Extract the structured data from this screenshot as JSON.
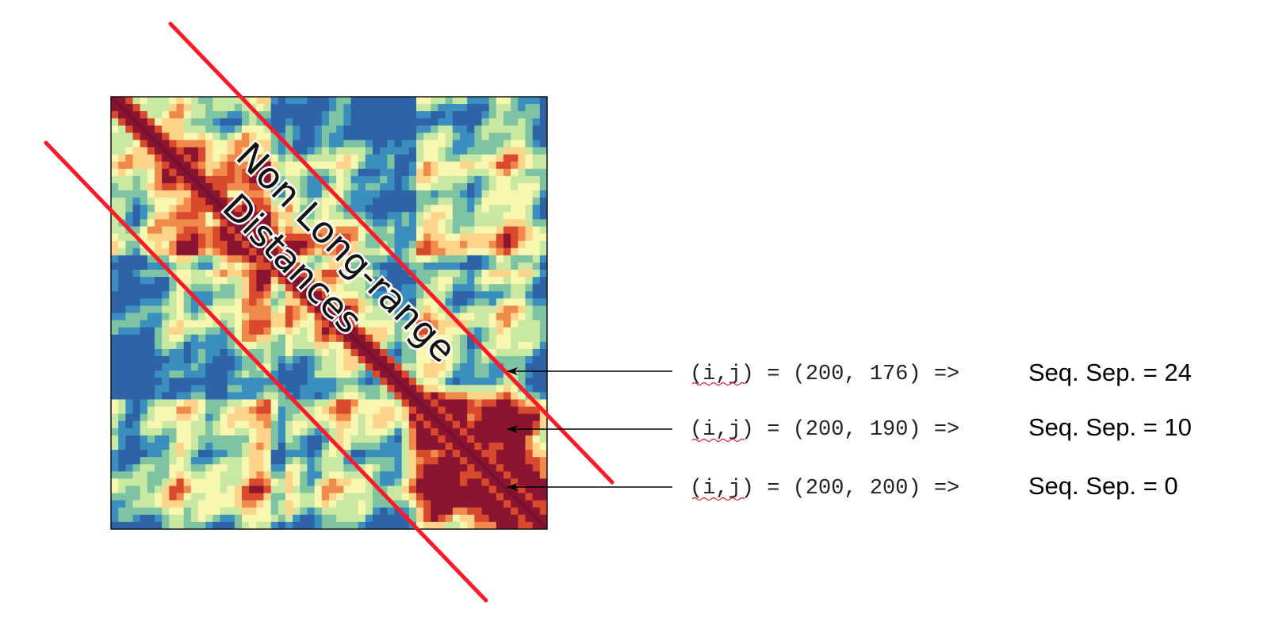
{
  "heatmap": {
    "colormap": [
      "#8b1530",
      "#d94a2c",
      "#f08a4b",
      "#fdd48a",
      "#f7f7b0",
      "#c9e8a2",
      "#7fc4a2",
      "#3a8fbf",
      "#2f63a8"
    ],
    "sequence_length": 200
  },
  "overlay": {
    "line_color": "#ff1a2a",
    "label_line1": "Non Long-range",
    "label_line2": "Distances"
  },
  "annotations": [
    {
      "code": "(i,j) = (200, 176) =>",
      "text": "Seq. Sep. = 24",
      "i": 200,
      "j": 176,
      "separation": 24
    },
    {
      "code": "(i,j) = (200, 190) =>",
      "text": "Seq. Sep. = 10",
      "i": 200,
      "j": 190,
      "separation": 10
    },
    {
      "code": "(i,j) = (200, 200) =>",
      "text": "Seq. Sep. = 0",
      "i": 200,
      "j": 200,
      "separation": 0
    }
  ]
}
